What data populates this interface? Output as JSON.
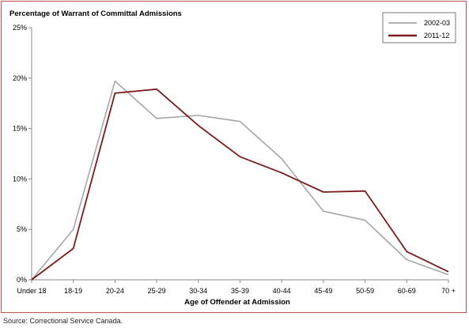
{
  "source_note": "Source:  Correctional Service Canada.",
  "chart_data": {
    "type": "line",
    "title": "Percentage of Warrant of Committal Admissions",
    "xlabel": "Age of Offender at Admission",
    "ylabel": "",
    "categories": [
      "Under 18",
      "18-19",
      "20-24",
      "25-29",
      "30-34",
      "35-39",
      "40-44",
      "45-49",
      "50-59",
      "60-69",
      "70 +"
    ],
    "ylim": [
      0,
      25
    ],
    "yticks": [
      0,
      5,
      10,
      15,
      20,
      25
    ],
    "ytick_labels": [
      "0%",
      "5%",
      "10%",
      "15%",
      "20%",
      "25%"
    ],
    "grid": false,
    "legend_position": "top-right",
    "series": [
      {
        "name": "2002-03",
        "color": "#a6a6a6",
        "values": [
          0.0,
          5.0,
          19.7,
          16.0,
          16.3,
          15.7,
          12.0,
          6.8,
          5.9,
          2.0,
          0.5
        ]
      },
      {
        "name": "2011-12",
        "color": "#7b1b1b",
        "values": [
          0.0,
          3.1,
          18.5,
          18.9,
          15.3,
          12.2,
          10.6,
          8.7,
          8.8,
          2.8,
          0.8
        ]
      }
    ]
  }
}
